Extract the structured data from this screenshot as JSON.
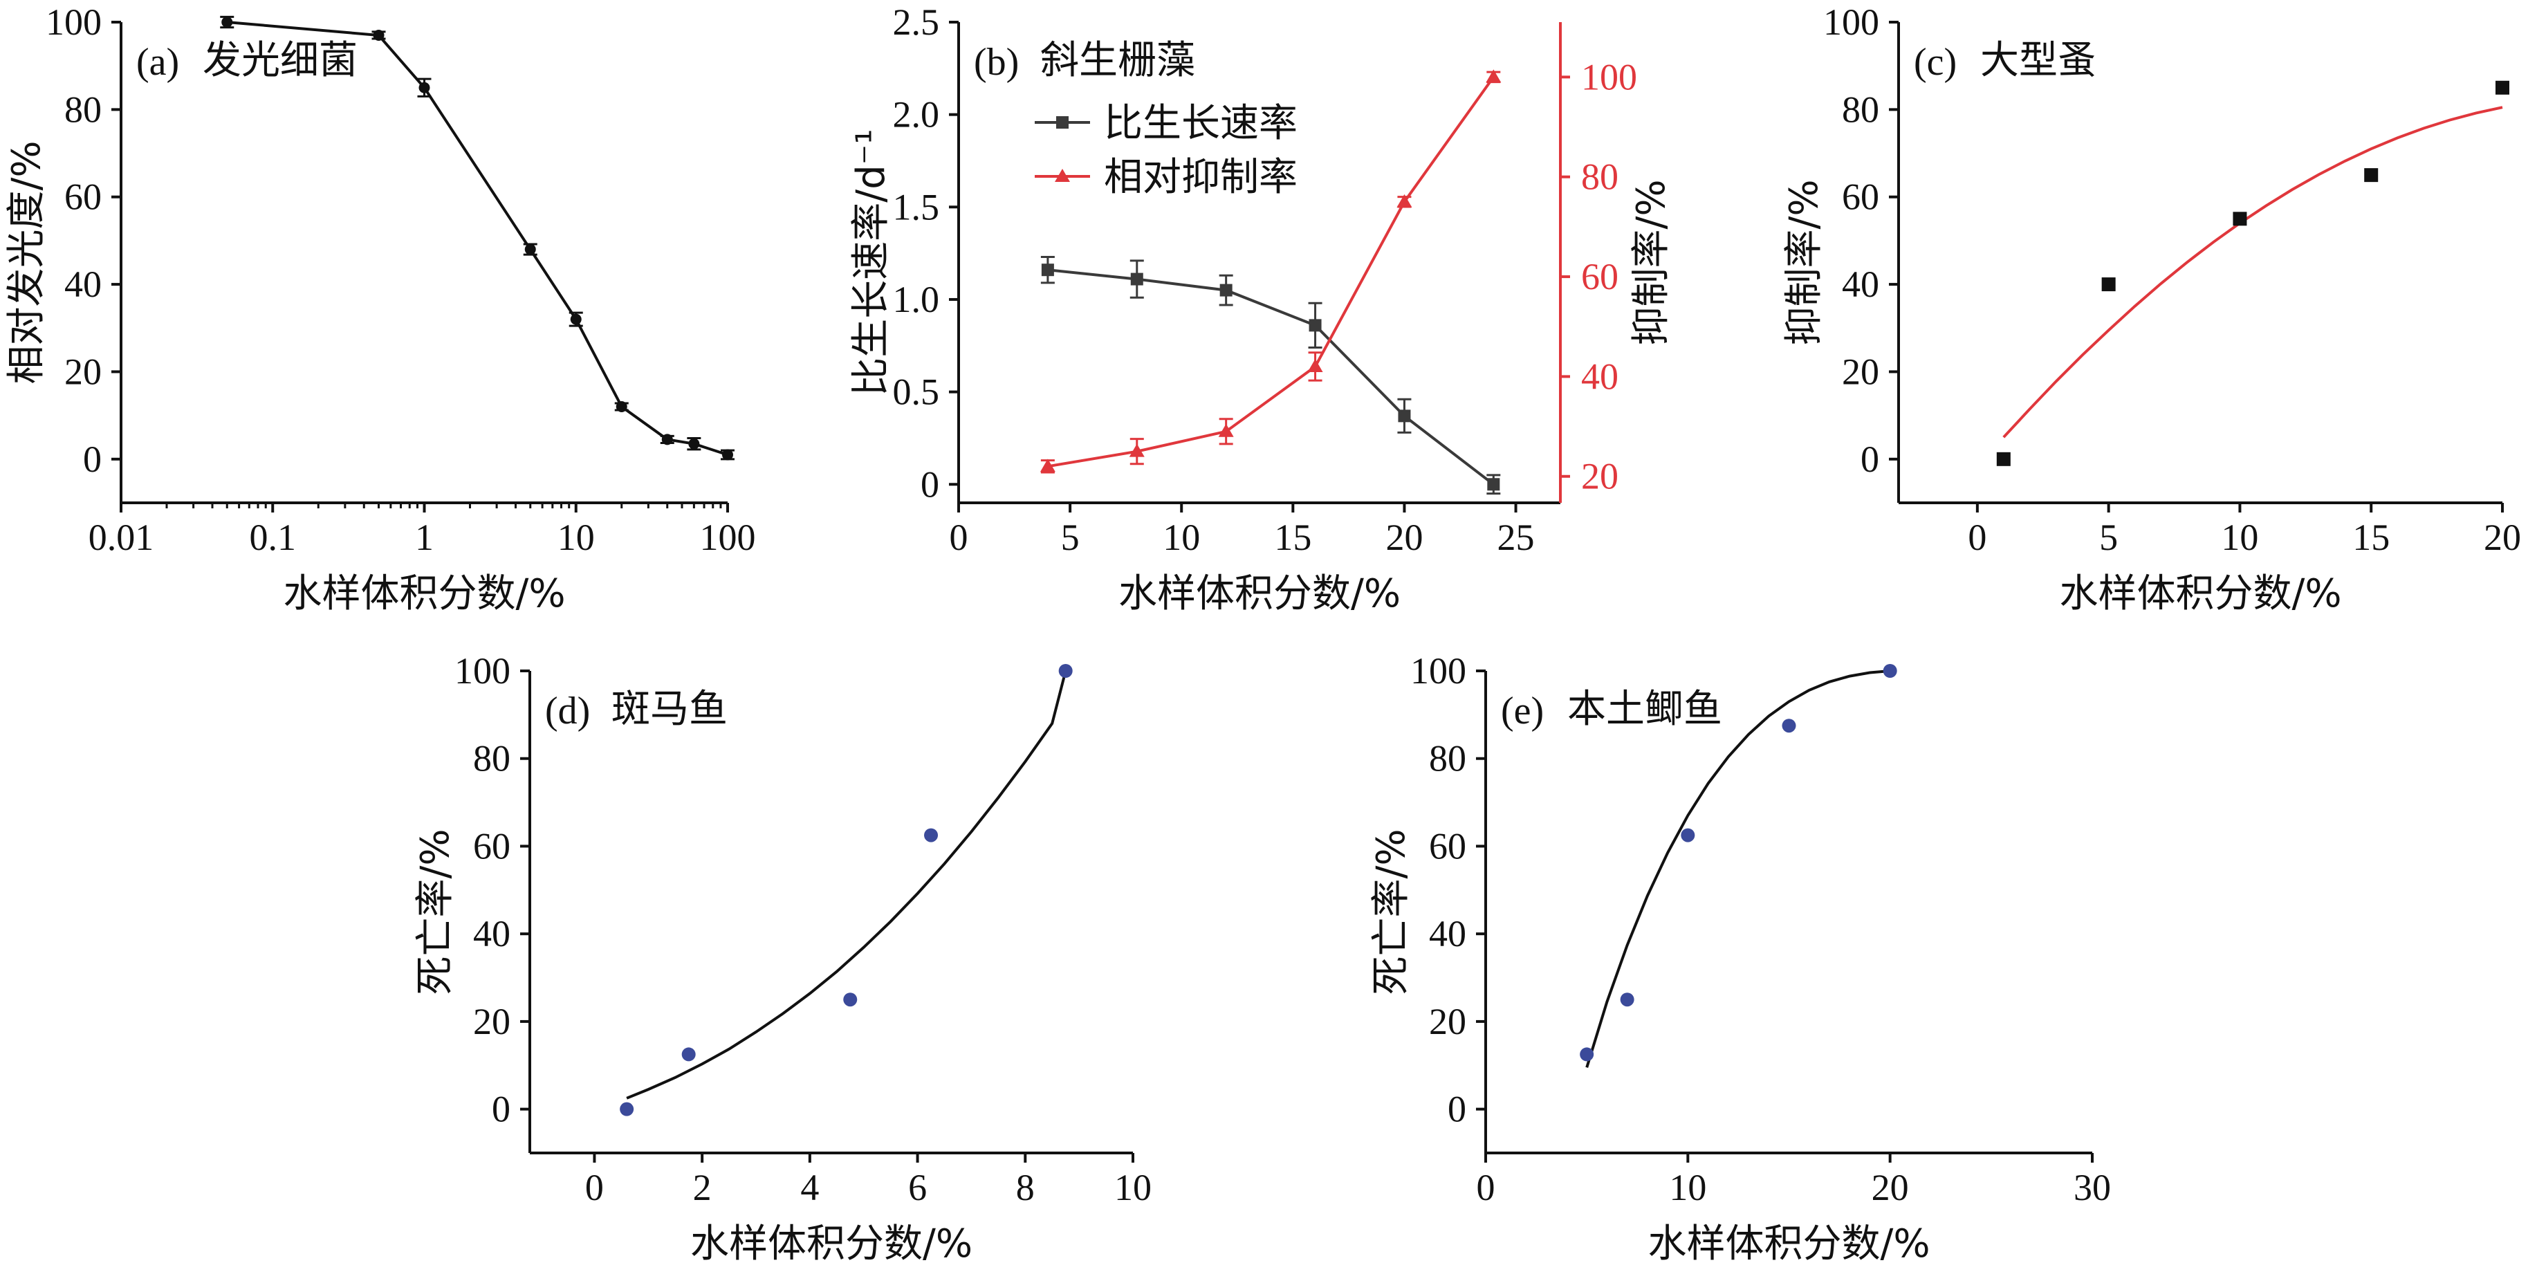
{
  "colors": {
    "black": "#111111",
    "dark_gray": "#3a3a3a",
    "red": "#e0373c",
    "blue": "#3b4a9a"
  },
  "chart_data": [
    {
      "id": "a",
      "type": "line",
      "panel_label": "(a)",
      "title": "发光细菌",
      "xlabel": "水样体积分数/%",
      "ylabel": "相对发光度/%",
      "x_scale": "log",
      "xlim": [
        0.01,
        100
      ],
      "ylim": [
        -10,
        100
      ],
      "x_ticks": [
        0.01,
        0.1,
        1,
        10,
        100
      ],
      "x_tick_labels": [
        "0.01",
        "0.1",
        "1",
        "10",
        "100"
      ],
      "y_ticks": [
        0,
        20,
        40,
        60,
        80,
        100
      ],
      "y_tick_labels": [
        "0",
        "20",
        "40",
        "60",
        "80",
        "100"
      ],
      "series": [
        {
          "name": "相对发光度",
          "color": "#111111",
          "marker": "circle",
          "x": [
            0.05,
            0.5,
            1,
            5,
            10,
            20,
            40,
            60,
            100
          ],
          "y": [
            100,
            97,
            85,
            48,
            32,
            12,
            4.5,
            3.5,
            1
          ],
          "err": [
            1.2,
            0.8,
            2,
            1.2,
            1.5,
            0.8,
            0.8,
            1.3,
            1
          ]
        }
      ]
    },
    {
      "id": "b",
      "type": "line",
      "panel_label": "(b)",
      "title": "斜生栅藻",
      "xlabel": "水样体积分数/%",
      "ylabel": "比生长速率/d⁻¹",
      "ylabel_right": "抑制率/%",
      "xlim": [
        0,
        27
      ],
      "ylim": [
        -0.1,
        2.5
      ],
      "ylim_right": [
        14.7,
        111
      ],
      "x_ticks": [
        0,
        5,
        10,
        15,
        20,
        25
      ],
      "x_tick_labels": [
        "0",
        "5",
        "10",
        "15",
        "20",
        "25"
      ],
      "y_ticks": [
        0,
        0.5,
        1.0,
        1.5,
        2.0,
        2.5
      ],
      "y_tick_labels": [
        "0",
        "0.5",
        "1.0",
        "1.5",
        "2.0",
        "2.5"
      ],
      "y_ticks_right": [
        20,
        40,
        60,
        80,
        100
      ],
      "y_tick_labels_right": [
        "20",
        "40",
        "60",
        "80",
        "100"
      ],
      "legend": [
        "比生长速率",
        "相对抑制率"
      ],
      "legend_position": "top-left",
      "series": [
        {
          "name": "比生长速率",
          "axis": "left",
          "color": "#3a3a3a",
          "marker": "square",
          "x": [
            4,
            8,
            12,
            16,
            20,
            24
          ],
          "y": [
            1.16,
            1.11,
            1.05,
            0.86,
            0.37,
            0
          ],
          "err": [
            0.07,
            0.1,
            0.08,
            0.12,
            0.09,
            0.05
          ]
        },
        {
          "name": "相对抑制率",
          "axis": "right",
          "color": "#e0373c",
          "marker": "triangle",
          "x": [
            4,
            8,
            12,
            16,
            20,
            24
          ],
          "y": [
            22,
            25,
            29,
            42,
            75,
            100
          ],
          "err": [
            1.2,
            2.5,
            2.5,
            2.8,
            1,
            1
          ]
        }
      ]
    },
    {
      "id": "c",
      "type": "scatter",
      "panel_label": "(c)",
      "title": "大型蚤",
      "xlabel": "水样体积分数/%",
      "ylabel": "抑制率/%",
      "xlim": [
        -3,
        20
      ],
      "ylim": [
        -10,
        100
      ],
      "x_ticks": [
        0,
        5,
        10,
        15,
        20
      ],
      "x_tick_labels": [
        "0",
        "5",
        "10",
        "15",
        "20"
      ],
      "y_ticks": [
        0,
        20,
        40,
        60,
        80,
        100
      ],
      "y_tick_labels": [
        "0",
        "20",
        "40",
        "60",
        "80",
        "100"
      ],
      "series": [
        {
          "name": "抑制率",
          "color": "#111111",
          "marker": "square",
          "x": [
            1,
            5,
            10,
            15,
            20
          ],
          "y": [
            0,
            40,
            55,
            65,
            85
          ]
        }
      ],
      "fit": {
        "color": "#e0373c",
        "x": [
          1,
          2,
          3,
          4,
          5,
          6,
          7,
          8,
          9,
          10,
          11,
          12,
          13,
          14,
          15,
          16,
          17,
          18,
          19,
          20
        ],
        "y": [
          5,
          11.5,
          17.8,
          23.8,
          29.5,
          35,
          40.2,
          45.1,
          49.7,
          54,
          58,
          61.7,
          65.1,
          68.2,
          71,
          73.5,
          75.7,
          77.6,
          79.2,
          80.5
        ]
      }
    },
    {
      "id": "d",
      "type": "scatter",
      "panel_label": "(d)",
      "title": "斑马鱼",
      "xlabel": "水样体积分数/%",
      "ylabel": "死亡率/%",
      "xlim": [
        -1.2,
        10
      ],
      "ylim": [
        -10,
        100
      ],
      "x_ticks": [
        0,
        2,
        4,
        6,
        8,
        10
      ],
      "x_tick_labels": [
        "0",
        "2",
        "4",
        "6",
        "8",
        "10"
      ],
      "y_ticks": [
        0,
        20,
        40,
        60,
        80,
        100
      ],
      "y_tick_labels": [
        "0",
        "20",
        "40",
        "60",
        "80",
        "100"
      ],
      "series": [
        {
          "name": "死亡率",
          "color": "#3b4a9a",
          "marker": "circle",
          "x": [
            0.6,
            1.75,
            4.75,
            6.25,
            8.75
          ],
          "y": [
            0,
            12.5,
            25,
            62.5,
            100
          ]
        }
      ],
      "fit": {
        "color": "#111111",
        "x": [
          0.6,
          1.0,
          1.5,
          2.0,
          2.5,
          3.0,
          3.5,
          4.0,
          4.5,
          5.0,
          5.5,
          6.0,
          6.5,
          7.0,
          7.5,
          8.0,
          8.5,
          8.75
        ],
        "y": [
          2.5,
          4.5,
          7.2,
          10.3,
          13.7,
          17.6,
          21.8,
          26.4,
          31.4,
          36.9,
          42.8,
          49.2,
          56,
          63.3,
          71.1,
          79.3,
          88,
          100
        ]
      }
    },
    {
      "id": "e",
      "type": "scatter",
      "panel_label": "(e)",
      "title": "本土鲫鱼",
      "xlabel": "水样体积分数/%",
      "ylabel": "死亡率/%",
      "xlim": [
        0,
        30
      ],
      "ylim": [
        -10,
        100
      ],
      "x_ticks": [
        0,
        10,
        20,
        30
      ],
      "x_tick_labels": [
        "0",
        "10",
        "20",
        "30"
      ],
      "y_ticks": [
        0,
        20,
        40,
        60,
        80,
        100
      ],
      "y_tick_labels": [
        "0",
        "20",
        "40",
        "60",
        "80",
        "100"
      ],
      "series": [
        {
          "name": "死亡率",
          "color": "#3b4a9a",
          "marker": "circle",
          "x": [
            5,
            7,
            10,
            15,
            20
          ],
          "y": [
            12.5,
            25,
            62.5,
            87.5,
            100
          ]
        }
      ],
      "fit": {
        "color": "#111111",
        "x": [
          5,
          6,
          7,
          8,
          9,
          10,
          11,
          12,
          13,
          14,
          15,
          16,
          17,
          18,
          19,
          20
        ],
        "y": [
          9.5,
          24.5,
          37.4,
          48.7,
          58.5,
          67,
          74.3,
          80.4,
          85.5,
          89.7,
          93,
          95.6,
          97.5,
          98.8,
          99.6,
          100
        ]
      }
    }
  ]
}
